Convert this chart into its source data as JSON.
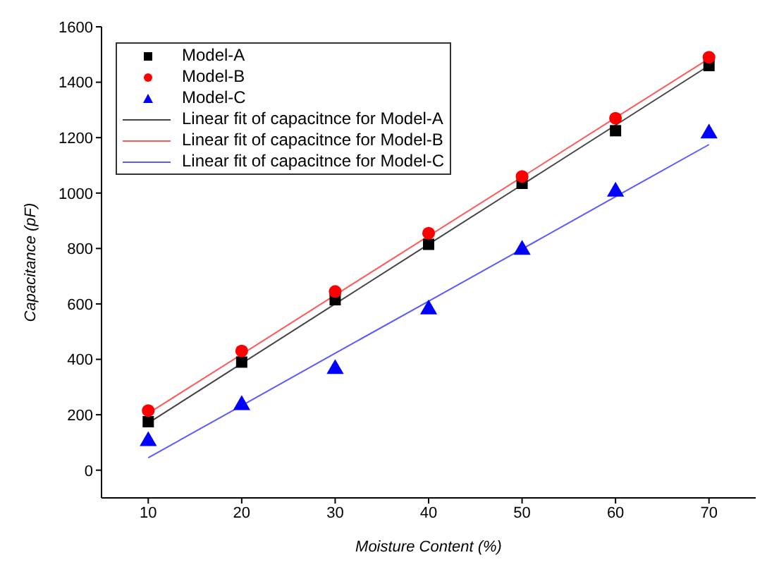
{
  "chart_data": {
    "type": "scatter",
    "xlabel": "Moisture Content (%)",
    "ylabel": "Capacitance (pF)",
    "x": [
      10,
      20,
      30,
      40,
      50,
      60,
      70
    ],
    "xlim": [
      5,
      75
    ],
    "xticks": [
      10,
      20,
      30,
      40,
      50,
      60,
      70
    ],
    "ylim": [
      -100,
      1600
    ],
    "yticks": [
      0,
      200,
      400,
      600,
      800,
      1000,
      1200,
      1400,
      1600
    ],
    "grid": false,
    "legend": "top left",
    "series": [
      {
        "name": "Model-A",
        "type": "scatter",
        "marker": "square",
        "color": "#000000",
        "values": [
          175,
          390,
          615,
          815,
          1035,
          1225,
          1460
        ]
      },
      {
        "name": "Model-B",
        "type": "scatter",
        "marker": "circle",
        "color": "#ff0000",
        "values": [
          215,
          430,
          645,
          855,
          1060,
          1270,
          1490
        ]
      },
      {
        "name": "Model-C",
        "type": "scatter",
        "marker": "triangle",
        "color": "#0000ff",
        "values": [
          105,
          235,
          365,
          580,
          795,
          1005,
          1215
        ]
      },
      {
        "name": "Linear fit of capacitnce for Model-A",
        "type": "line",
        "marker": "none",
        "line_style": "solid",
        "color": "#444444",
        "values": [
          170,
          385,
          600,
          815,
          1030,
          1245,
          1460
        ]
      },
      {
        "name": "Linear fit of capacitnce for Model-B",
        "type": "line",
        "marker": "none",
        "line_style": "solid",
        "color": "#ff5a5a",
        "values": [
          205,
          418,
          632,
          845,
          1058,
          1272,
          1485
        ]
      },
      {
        "name": "Linear fit of capacitnce for Model-C",
        "type": "line",
        "marker": "none",
        "line_style": "solid",
        "color": "#5a5aff",
        "values": [
          45,
          233,
          422,
          610,
          798,
          987,
          1175
        ]
      }
    ]
  }
}
